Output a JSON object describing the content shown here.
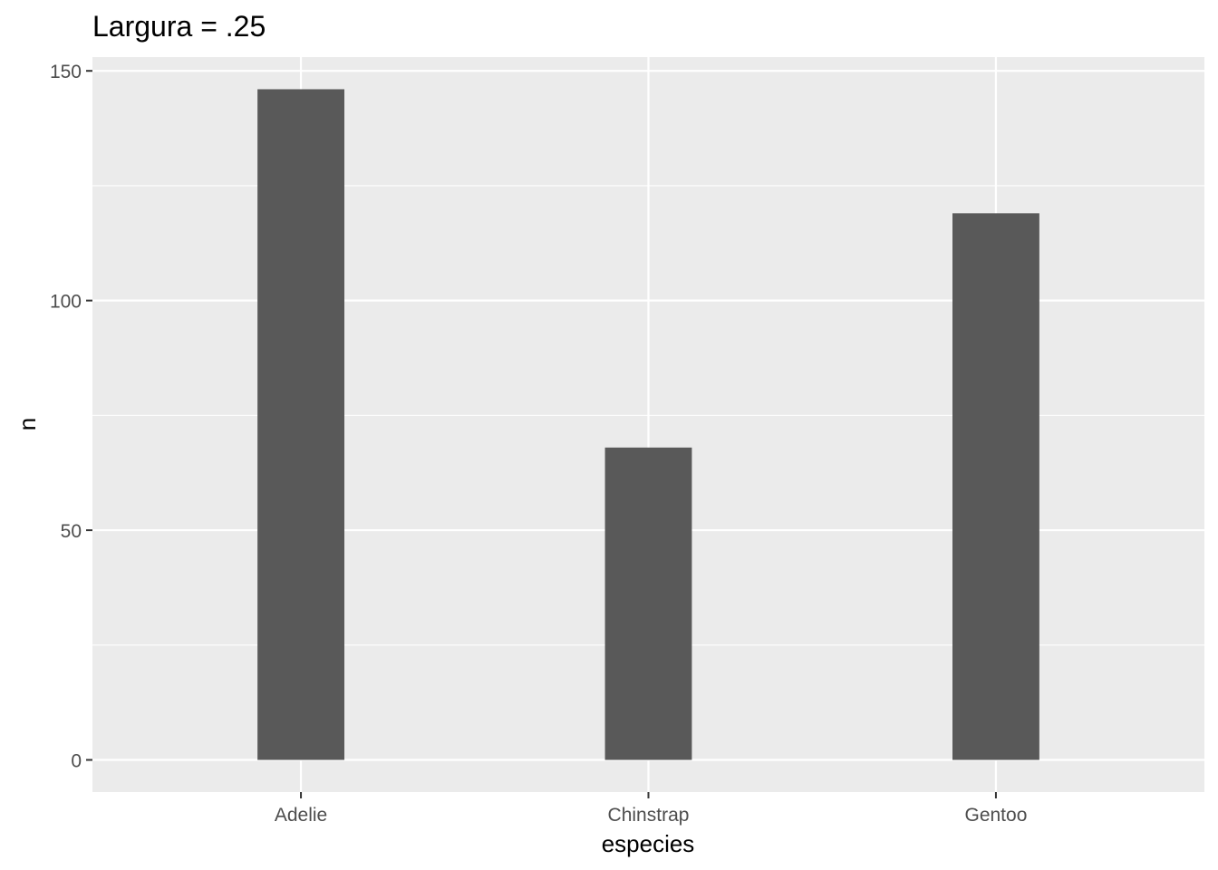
{
  "chart_data": {
    "type": "bar",
    "title": "Largura = .25",
    "xlabel": "especies",
    "ylabel": "n",
    "categories": [
      "Adelie",
      "Chinstrap",
      "Gentoo"
    ],
    "values": [
      146,
      68,
      119
    ],
    "ylim": [
      -7,
      153
    ],
    "yticks": [
      0,
      50,
      100,
      150
    ],
    "yminor": [
      25,
      75,
      125
    ],
    "bar_width": 0.25,
    "grid": true,
    "colors": {
      "panel": "#ebebeb",
      "grid": "#ffffff",
      "bar": "#595959",
      "tick": "#333333"
    }
  }
}
